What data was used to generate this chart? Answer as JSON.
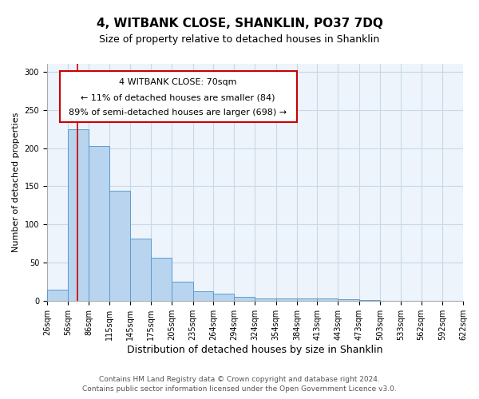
{
  "title": "4, WITBANK CLOSE, SHANKLIN, PO37 7DQ",
  "subtitle": "Size of property relative to detached houses in Shanklin",
  "xlabel": "Distribution of detached houses by size in Shanklin",
  "ylabel": "Number of detached properties",
  "bar_heights": [
    15,
    224,
    203,
    144,
    82,
    57,
    25,
    13,
    10,
    6,
    4,
    4,
    4,
    3,
    2,
    1,
    0,
    0,
    0,
    0
  ],
  "bin_edges": [
    26,
    56,
    86,
    115,
    145,
    175,
    205,
    235,
    264,
    294,
    324,
    354,
    384,
    413,
    443,
    473,
    503,
    533,
    562,
    592,
    622
  ],
  "tick_labels": [
    "26sqm",
    "56sqm",
    "86sqm",
    "115sqm",
    "145sqm",
    "175sqm",
    "205sqm",
    "235sqm",
    "264sqm",
    "294sqm",
    "324sqm",
    "354sqm",
    "384sqm",
    "413sqm",
    "443sqm",
    "473sqm",
    "503sqm",
    "533sqm",
    "562sqm",
    "592sqm",
    "622sqm"
  ],
  "bar_color": "#b8d4ee",
  "bar_edge_color": "#5b9bd5",
  "vline_x": 70,
  "vline_color": "#cc0000",
  "ann_line1": "4 WITBANK CLOSE: 70sqm",
  "ann_line2": "← 11% of detached houses are smaller (84)",
  "ann_line3": "89% of semi-detached houses are larger (698) →",
  "ylim": [
    0,
    310
  ],
  "yticks": [
    0,
    50,
    100,
    150,
    200,
    250,
    300
  ],
  "background_color": "#ffffff",
  "plot_bg_color": "#eef4fb",
  "grid_color": "#c8d8e8",
  "footer_line1": "Contains HM Land Registry data © Crown copyright and database right 2024.",
  "footer_line2": "Contains public sector information licensed under the Open Government Licence v3.0.",
  "title_fontsize": 11,
  "subtitle_fontsize": 9,
  "xlabel_fontsize": 9,
  "ylabel_fontsize": 8,
  "tick_fontsize": 7,
  "annotation_fontsize": 8,
  "footer_fontsize": 6.5
}
